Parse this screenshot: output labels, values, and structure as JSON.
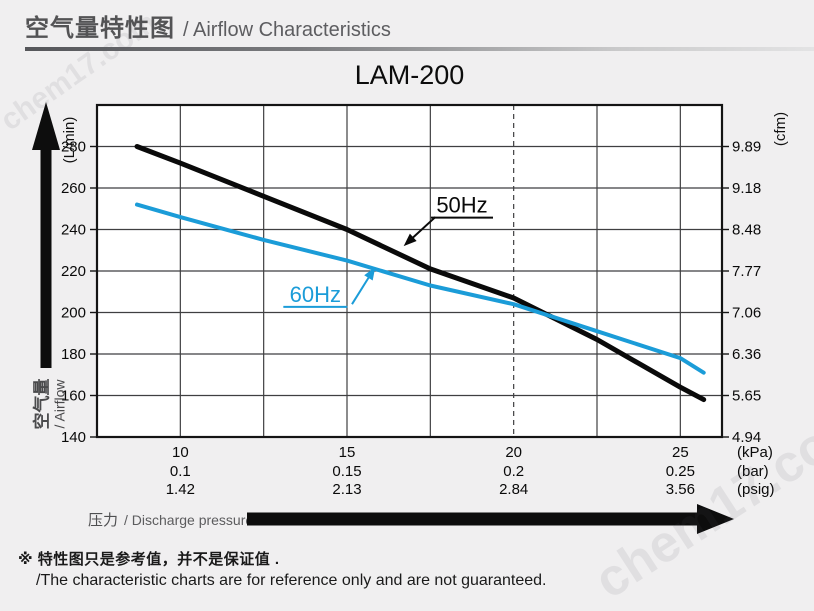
{
  "watermark": "chem17.com",
  "header": {
    "title_zh": "空气量特性图",
    "title_en": "/ Airflow Characteristics"
  },
  "chart_data": {
    "type": "line",
    "title": "LAM-200",
    "grid": true,
    "x_axis": {
      "label_zh": "压力",
      "label_en": "/ Discharge pressure",
      "range_kpa": [
        7.5,
        26.25
      ],
      "gridline_step_kpa": 2.5,
      "dashed_gridline_kpa": 20,
      "ticks": [
        {
          "kpa": "10",
          "bar": "0.1",
          "psig": "1.42"
        },
        {
          "kpa": "15",
          "bar": "0.15",
          "psig": "2.13"
        },
        {
          "kpa": "20",
          "bar": "0.2",
          "psig": "2.84"
        },
        {
          "kpa": "25",
          "bar": "0.25",
          "psig": "3.56"
        }
      ],
      "unit_labels": [
        "(kPa)",
        "(bar)",
        "(psig)"
      ]
    },
    "y_axis_left": {
      "unit": "(L/min)",
      "label_zh": "空气量",
      "label_en": "/ Airflow",
      "range": [
        140,
        300
      ],
      "tick_step": 20,
      "ticks": [
        "280",
        "260",
        "240",
        "220",
        "200",
        "180",
        "160",
        "140"
      ]
    },
    "y_axis_right": {
      "unit": "(cfm)",
      "ticks": [
        "9.89",
        "9.18",
        "8.48",
        "7.77",
        "7.06",
        "6.36",
        "5.65",
        "4.94"
      ]
    },
    "series": [
      {
        "name": "50Hz",
        "color": "#0a0a0a",
        "stroke_width": 5,
        "points": [
          [
            8.7,
            280
          ],
          [
            10,
            272
          ],
          [
            12.5,
            256
          ],
          [
            15,
            240
          ],
          [
            17.5,
            221
          ],
          [
            20,
            207
          ],
          [
            22.5,
            187
          ],
          [
            25,
            164
          ],
          [
            25.7,
            158
          ]
        ]
      },
      {
        "name": "60Hz",
        "color": "#1b9cd8",
        "stroke_width": 4,
        "points": [
          [
            8.7,
            252
          ],
          [
            10,
            246
          ],
          [
            12.5,
            235
          ],
          [
            15,
            225
          ],
          [
            17.5,
            213
          ],
          [
            20,
            204
          ],
          [
            22.5,
            191
          ],
          [
            25,
            178
          ],
          [
            25.7,
            171
          ]
        ]
      }
    ],
    "annotations": [
      {
        "label": "50Hz",
        "color": "#0a0a0a",
        "text_at": [
          18.45,
          252
        ],
        "arrow_from": [
          17.65,
          246
        ],
        "arrow_to": [
          16.7,
          232
        ],
        "underline_half_width": 31
      },
      {
        "label": "60Hz",
        "color": "#1b9cd8",
        "text_at": [
          14.05,
          209
        ],
        "arrow_from": [
          15.15,
          204
        ],
        "arrow_to": [
          15.85,
          222
        ],
        "underline_half_width": 32
      }
    ]
  },
  "footer": {
    "note_zh": "※ 特性图只是参考值，并不是保证值 .",
    "note_en": "/The characteristic charts are for reference only and are not guaranteed."
  }
}
